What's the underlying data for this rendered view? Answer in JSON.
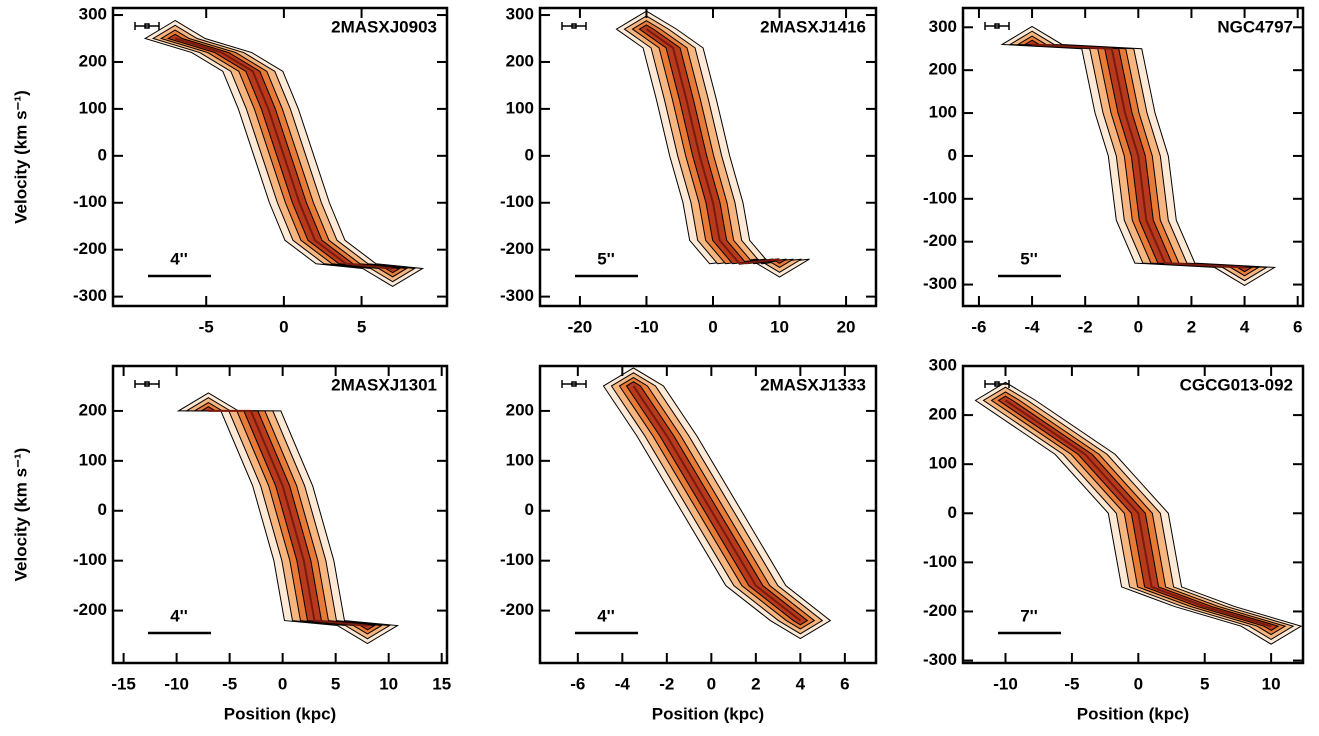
{
  "chart_data": [
    {
      "type": "pv",
      "title": "2MASXJ0903",
      "scale_label": "4''",
      "y_label": "Velocity (km s⁻¹)",
      "x": [
        -7,
        -4,
        -2,
        -1,
        0,
        1,
        2,
        4,
        7
      ],
      "values": [
        250,
        220,
        180,
        100,
        0,
        -100,
        -180,
        -230,
        -240
      ],
      "xlim": [
        -11,
        10.5
      ],
      "ylim": [
        -320,
        315
      ],
      "xticks": [
        -5,
        0,
        5
      ],
      "yticks": [
        -300,
        -200,
        -100,
        0,
        100,
        200,
        300
      ]
    },
    {
      "type": "pv",
      "title": "2MASXJ1416",
      "scale_label": "5''",
      "x": [
        -10,
        -6,
        -4,
        -2,
        0,
        1,
        4,
        10
      ],
      "values": [
        270,
        230,
        120,
        0,
        -100,
        -180,
        -230,
        -220
      ],
      "xlim": [
        -26,
        24.5
      ],
      "ylim": [
        -320,
        315
      ],
      "xticks": [
        -20,
        -10,
        0,
        10,
        20
      ],
      "yticks": [
        -300,
        -200,
        -100,
        0,
        100,
        200,
        300
      ]
    },
    {
      "type": "pv",
      "title": "NGC4797",
      "scale_label": "5''",
      "x": [
        -4,
        -1,
        -0.5,
        0,
        0.3,
        1,
        4
      ],
      "values": [
        260,
        250,
        100,
        0,
        -150,
        -250,
        -260
      ],
      "xlim": [
        -6.6,
        6.2
      ],
      "ylim": [
        -350,
        345
      ],
      "xticks": [
        -6,
        -4,
        -2,
        0,
        2,
        4,
        6
      ],
      "yticks": [
        -300,
        -200,
        -100,
        0,
        100,
        200,
        300
      ]
    },
    {
      "type": "pv",
      "title": "2MASXJ1301",
      "scale_label": "4''",
      "y_label": "Velocity (km s⁻¹)",
      "x_label": "Position (kpc)",
      "x": [
        -7,
        -3,
        0,
        2,
        3,
        8
      ],
      "values": [
        200,
        200,
        50,
        -100,
        -220,
        -230
      ],
      "xlim": [
        -16,
        15.5
      ],
      "ylim": [
        -305,
        290
      ],
      "xticks": [
        -15,
        -10,
        -5,
        0,
        5,
        10,
        15
      ],
      "yticks": [
        -200,
        -100,
        0,
        100,
        200
      ]
    },
    {
      "type": "pv",
      "title": "2MASXJ1333",
      "scale_label": "4''",
      "x_label": "Position (kpc)",
      "x": [
        -3.5,
        -2,
        0,
        2,
        4
      ],
      "values": [
        250,
        150,
        0,
        -150,
        -220
      ],
      "xlim": [
        -7.7,
        7.4
      ],
      "ylim": [
        -305,
        290
      ],
      "xticks": [
        -6,
        -4,
        -2,
        0,
        2,
        4,
        6
      ],
      "yticks": [
        -200,
        -100,
        0,
        100,
        200
      ]
    },
    {
      "type": "pv",
      "title": "CGCG013-092",
      "scale_label": "7''",
      "x_label": "Position (kpc)",
      "x": [
        -10,
        -4,
        0,
        1,
        5,
        10
      ],
      "values": [
        230,
        120,
        0,
        -150,
        -190,
        -230
      ],
      "xlim": [
        -13.2,
        12.4
      ],
      "ylim": [
        -305,
        300
      ],
      "xticks": [
        -10,
        -5,
        0,
        5,
        10
      ],
      "yticks": [
        -300,
        -200,
        -100,
        0,
        100,
        200,
        300
      ]
    }
  ]
}
